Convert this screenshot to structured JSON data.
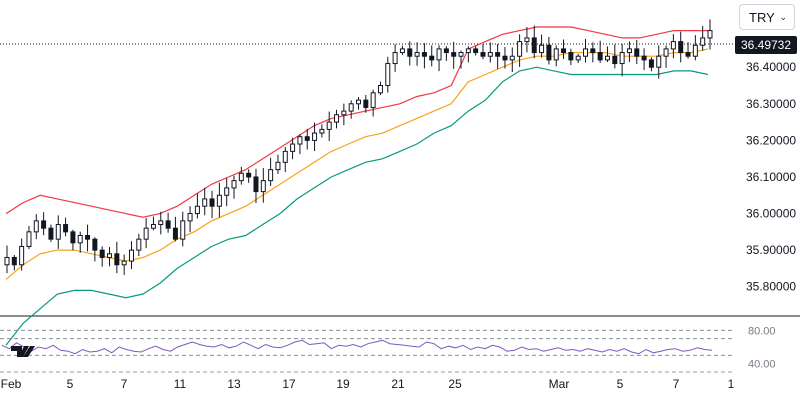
{
  "currency_selector": {
    "value": "TRY"
  },
  "last_price": {
    "label": "36.49732"
  },
  "logo": {
    "name": "tradingview-logo-icon"
  },
  "colors": {
    "upper_band": "#f23645",
    "lower_band": "#089981",
    "middle_band": "#f7a21b",
    "rsi_line": "#7e57c2",
    "candle": "#131722"
  },
  "chart_data": [
    {
      "type": "candlestick",
      "x_ticks": [
        "Feb",
        "5",
        "7",
        "11",
        "13",
        "17",
        "19",
        "21",
        "25",
        "Mar",
        "5",
        "7",
        "1"
      ],
      "y_ticks": [
        "35.80000",
        "35.90000",
        "36.00000",
        "36.10000",
        "36.20000",
        "36.30000",
        "36.40000"
      ],
      "ylim": [
        35.72,
        36.57
      ],
      "last_value": 36.49732,
      "indicators": [
        "bollinger_upper",
        "bollinger_middle",
        "bollinger_lower"
      ],
      "close": [
        35.88,
        35.86,
        35.91,
        35.95,
        35.98,
        35.96,
        35.93,
        35.97,
        35.95,
        35.92,
        35.94,
        35.93,
        35.9,
        35.88,
        35.89,
        35.86,
        35.87,
        35.9,
        35.93,
        35.96,
        35.97,
        35.98,
        35.96,
        35.93,
        35.98,
        36.0,
        36.02,
        36.04,
        36.02,
        36.05,
        36.07,
        36.09,
        36.11,
        36.1,
        36.06,
        36.09,
        36.12,
        36.14,
        36.17,
        36.19,
        36.21,
        36.2,
        36.22,
        36.23,
        36.25,
        36.27,
        36.28,
        36.3,
        36.31,
        36.29,
        36.33,
        36.35,
        36.41,
        36.44,
        36.45,
        36.43,
        36.44,
        36.43,
        36.42,
        36.45,
        36.44,
        36.43,
        36.44,
        36.45,
        36.44,
        36.43,
        36.44,
        36.43,
        36.42,
        36.43,
        36.47,
        36.48,
        36.44,
        36.46,
        36.42,
        36.45,
        36.44,
        36.42,
        36.43,
        36.45,
        36.44,
        36.42,
        36.43,
        36.41,
        36.44,
        36.45,
        36.43,
        36.42,
        36.4,
        36.43,
        36.45,
        36.47,
        36.44,
        36.43,
        36.46,
        36.48,
        36.5
      ],
      "upper_band": [
        36.0,
        36.03,
        36.05,
        36.04,
        36.03,
        36.02,
        36.01,
        36.0,
        35.99,
        36.0,
        36.02,
        36.05,
        36.08,
        36.1,
        36.12,
        36.15,
        36.18,
        36.21,
        36.24,
        36.26,
        36.27,
        36.28,
        36.29,
        36.3,
        36.32,
        36.33,
        36.35,
        36.45,
        36.47,
        36.49,
        36.5,
        36.51,
        36.51,
        36.51,
        36.5,
        36.49,
        36.48,
        36.48,
        36.49,
        36.5,
        36.5,
        36.5
      ],
      "middle_band": [
        35.82,
        35.86,
        35.89,
        35.9,
        35.9,
        35.89,
        35.88,
        35.87,
        35.88,
        35.9,
        35.93,
        35.95,
        35.98,
        36.0,
        36.02,
        36.05,
        36.08,
        36.11,
        36.14,
        36.17,
        36.19,
        36.21,
        36.22,
        36.24,
        36.26,
        36.28,
        36.3,
        36.36,
        36.38,
        36.4,
        36.42,
        36.43,
        36.43,
        36.44,
        36.44,
        36.44,
        36.43,
        36.43,
        36.43,
        36.44,
        36.44,
        36.45
      ],
      "lower_band": [
        35.64,
        35.7,
        35.74,
        35.78,
        35.79,
        35.79,
        35.78,
        35.77,
        35.78,
        35.81,
        35.85,
        35.88,
        35.91,
        35.93,
        35.94,
        35.97,
        36.0,
        36.04,
        36.07,
        36.1,
        36.12,
        36.14,
        36.15,
        36.17,
        36.19,
        36.22,
        36.24,
        36.28,
        36.31,
        36.36,
        36.39,
        36.4,
        36.39,
        36.38,
        36.38,
        36.38,
        36.38,
        36.38,
        36.38,
        36.39,
        36.39,
        36.38
      ]
    },
    {
      "type": "line",
      "name": "RSI",
      "y_ticks": [
        "80.00",
        "40.00"
      ],
      "ylim": [
        30,
        90
      ],
      "bands": [
        80,
        70,
        50,
        30
      ],
      "values": [
        62,
        58,
        65,
        60,
        55,
        60,
        58,
        62,
        56,
        55,
        52,
        57,
        54,
        55,
        58,
        53,
        60,
        57,
        55,
        54,
        58,
        61,
        57,
        55,
        60,
        63,
        66,
        63,
        61,
        60,
        63,
        59,
        61,
        66,
        62,
        58,
        63,
        60,
        59,
        62,
        66,
        68,
        63,
        64,
        65,
        58,
        62,
        61,
        63,
        60,
        64,
        66,
        68,
        64,
        63,
        62,
        61,
        60,
        66,
        64,
        58,
        61,
        59,
        62,
        57,
        60,
        58,
        62,
        60,
        55,
        56,
        60,
        57,
        58,
        55,
        57,
        59,
        56,
        57,
        55,
        58,
        56,
        54,
        57,
        55,
        58,
        54,
        52,
        57,
        53,
        55,
        57,
        58,
        55,
        56,
        59,
        57,
        56
      ]
    }
  ]
}
